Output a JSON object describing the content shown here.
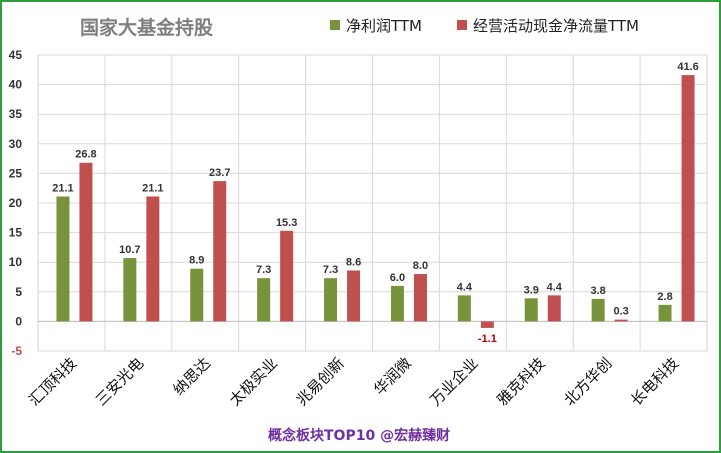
{
  "chart_data": {
    "type": "bar",
    "title": "国家大基金持股",
    "footer": "概念板块TOP10 @宏赫臻财",
    "categories": [
      "汇顶科技",
      "三安光电",
      "纳思达",
      "太极实业",
      "兆易创新",
      "华润微",
      "万业企业",
      "雅克科技",
      "北方华创",
      "长电科技"
    ],
    "series": [
      {
        "name": "净利润TTM",
        "color": "#77933c",
        "values": [
          21.1,
          10.7,
          8.9,
          7.3,
          7.3,
          6.0,
          4.4,
          3.9,
          3.8,
          2.8
        ],
        "labels": [
          "21.1",
          "10.7",
          "8.9",
          "7.3",
          "7.3",
          "6.0",
          "4.4",
          "3.9",
          "3.8",
          "2.8"
        ]
      },
      {
        "name": "经营活动现金净流量TTM",
        "color": "#c0504d",
        "values": [
          26.8,
          21.1,
          23.7,
          15.3,
          8.6,
          8.0,
          -1.1,
          4.4,
          0.3,
          41.6
        ],
        "labels": [
          "26.8",
          "21.1",
          "23.7",
          "15.3",
          "8.6",
          "8.0",
          "-1.1",
          "4.4",
          "0.3",
          "41.6"
        ]
      }
    ],
    "y_ticks": [
      "45",
      "40",
      "35",
      "30",
      "25",
      "20",
      "15",
      "10",
      "5",
      "0",
      "-5"
    ],
    "ylim": [
      -5,
      45
    ],
    "grid": true,
    "legend_position": "top-right"
  }
}
